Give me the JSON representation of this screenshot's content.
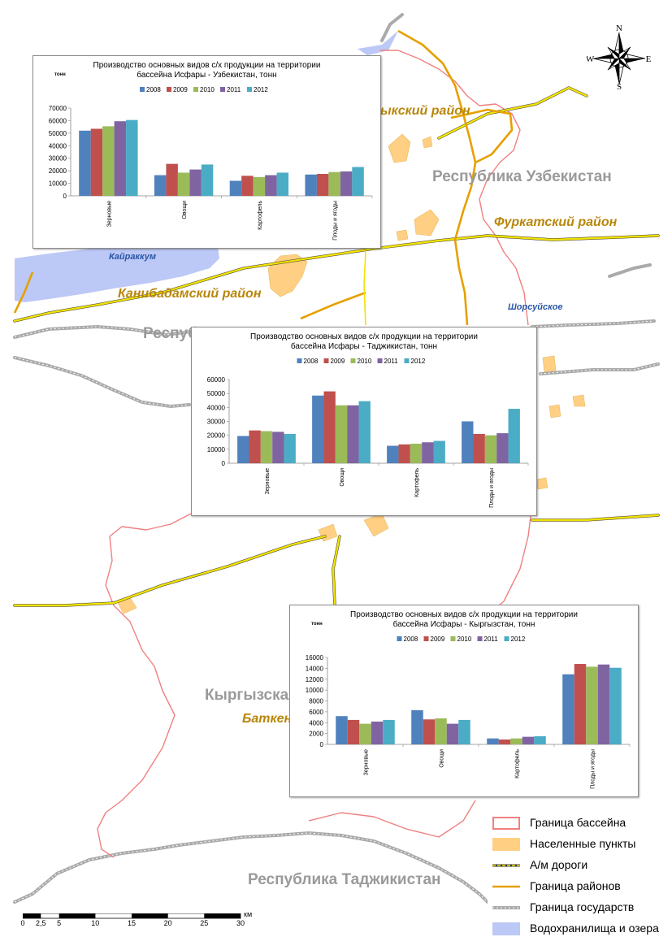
{
  "map_labels": {
    "uzbekistan": "Республика Узбекистан",
    "tajikistan_top": "Республ",
    "tajikistan_bottom": "Республика Таджикистан",
    "kyrgyzstan": "Кыргызская",
    "district_1": "ыкский район",
    "district_furkat": "Фуркатский район",
    "district_kanibadam": "Канибадамский район",
    "district_batken": "Баткен",
    "place_kairakkum": "Кайраккум",
    "place_shorsu": "Шорсуйское"
  },
  "compass": {
    "n": "N",
    "s": "S",
    "e": "E",
    "w": "W"
  },
  "legend": {
    "items": [
      {
        "label": "Граница бассейна",
        "symbol": "basin-boundary"
      },
      {
        "label": "Населенные пункты",
        "symbol": "settlements"
      },
      {
        "label": "А/м дороги",
        "symbol": "roads"
      },
      {
        "label": "Граница районов",
        "symbol": "district-boundary"
      },
      {
        "label": "Граница государств",
        "symbol": "state-boundary"
      },
      {
        "label": "Водохранилища и озера",
        "symbol": "reservoirs"
      }
    ]
  },
  "scale_bar": {
    "ticks": [
      "0",
      "2,5",
      "5",
      "10",
      "15",
      "20",
      "25",
      "30"
    ],
    "unit": "км"
  },
  "colors": {
    "series": [
      "#4f81bd",
      "#c0504d",
      "#9bbb59",
      "#8064a2",
      "#4bacc6"
    ],
    "basin": "#f08080",
    "settlement": "#ffd083",
    "road": "#f2e200",
    "district_boundary": "#e6a000",
    "state_boundary": "#aaaaaa",
    "water": "#bcc8f5"
  },
  "chart_data": [
    {
      "type": "bar",
      "title": "Производство основных видов с/х продукции на территории бассейна Исфары - Узбекистан, тонн",
      "ylabel": "тонн",
      "ylim": [
        0,
        70000
      ],
      "yticks": [
        0,
        10000,
        20000,
        30000,
        40000,
        50000,
        60000,
        70000
      ],
      "legend_position": "top",
      "categories": [
        "Зерновые",
        "Овощи",
        "Картофель",
        "Плоды и ягоды"
      ],
      "series": [
        {
          "name": "2008",
          "values": [
            52000,
            16500,
            12000,
            17000
          ]
        },
        {
          "name": "2009",
          "values": [
            53500,
            25500,
            16000,
            17500
          ]
        },
        {
          "name": "2010",
          "values": [
            55500,
            18500,
            15000,
            19000
          ]
        },
        {
          "name": "2011",
          "values": [
            59500,
            21000,
            16500,
            19500
          ]
        },
        {
          "name": "2012",
          "values": [
            60500,
            25000,
            18500,
            23000
          ]
        }
      ]
    },
    {
      "type": "bar",
      "title": "Производство основных видов с/х продукции на территории бассейна Исфары - Таджикистан, тонн",
      "ylabel": "",
      "ylim": [
        0,
        60000
      ],
      "yticks": [
        0,
        10000,
        20000,
        30000,
        40000,
        50000,
        60000
      ],
      "legend_position": "top",
      "categories": [
        "Зерновые",
        "Овощи",
        "Картофель",
        "Плоды и ягоды"
      ],
      "series": [
        {
          "name": "2008",
          "values": [
            19500,
            48500,
            12500,
            30000
          ]
        },
        {
          "name": "2009",
          "values": [
            23500,
            51500,
            13500,
            21000
          ]
        },
        {
          "name": "2010",
          "values": [
            23000,
            41500,
            14000,
            20000
          ]
        },
        {
          "name": "2011",
          "values": [
            22500,
            41500,
            15000,
            21500
          ]
        },
        {
          "name": "2012",
          "values": [
            21000,
            44500,
            16000,
            39000
          ]
        }
      ]
    },
    {
      "type": "bar",
      "title": "Производство основных видов с/х продукции на территории бассейна Исфары - Кыргызстан, тонн",
      "ylabel": "тонн",
      "ylim": [
        0,
        16000
      ],
      "yticks": [
        0,
        2000,
        4000,
        6000,
        8000,
        10000,
        12000,
        14000,
        16000
      ],
      "legend_position": "top",
      "categories": [
        "Зерновые",
        "Овощи",
        "Картофель",
        "Плоды и ягоды"
      ],
      "series": [
        {
          "name": "2008",
          "values": [
            5200,
            6300,
            1100,
            12900
          ]
        },
        {
          "name": "2009",
          "values": [
            4500,
            4600,
            900,
            14800
          ]
        },
        {
          "name": "2010",
          "values": [
            3800,
            4800,
            1100,
            14300
          ]
        },
        {
          "name": "2011",
          "values": [
            4200,
            3800,
            1400,
            14700
          ]
        },
        {
          "name": "2012",
          "values": [
            4500,
            4500,
            1500,
            14100
          ]
        }
      ]
    }
  ]
}
